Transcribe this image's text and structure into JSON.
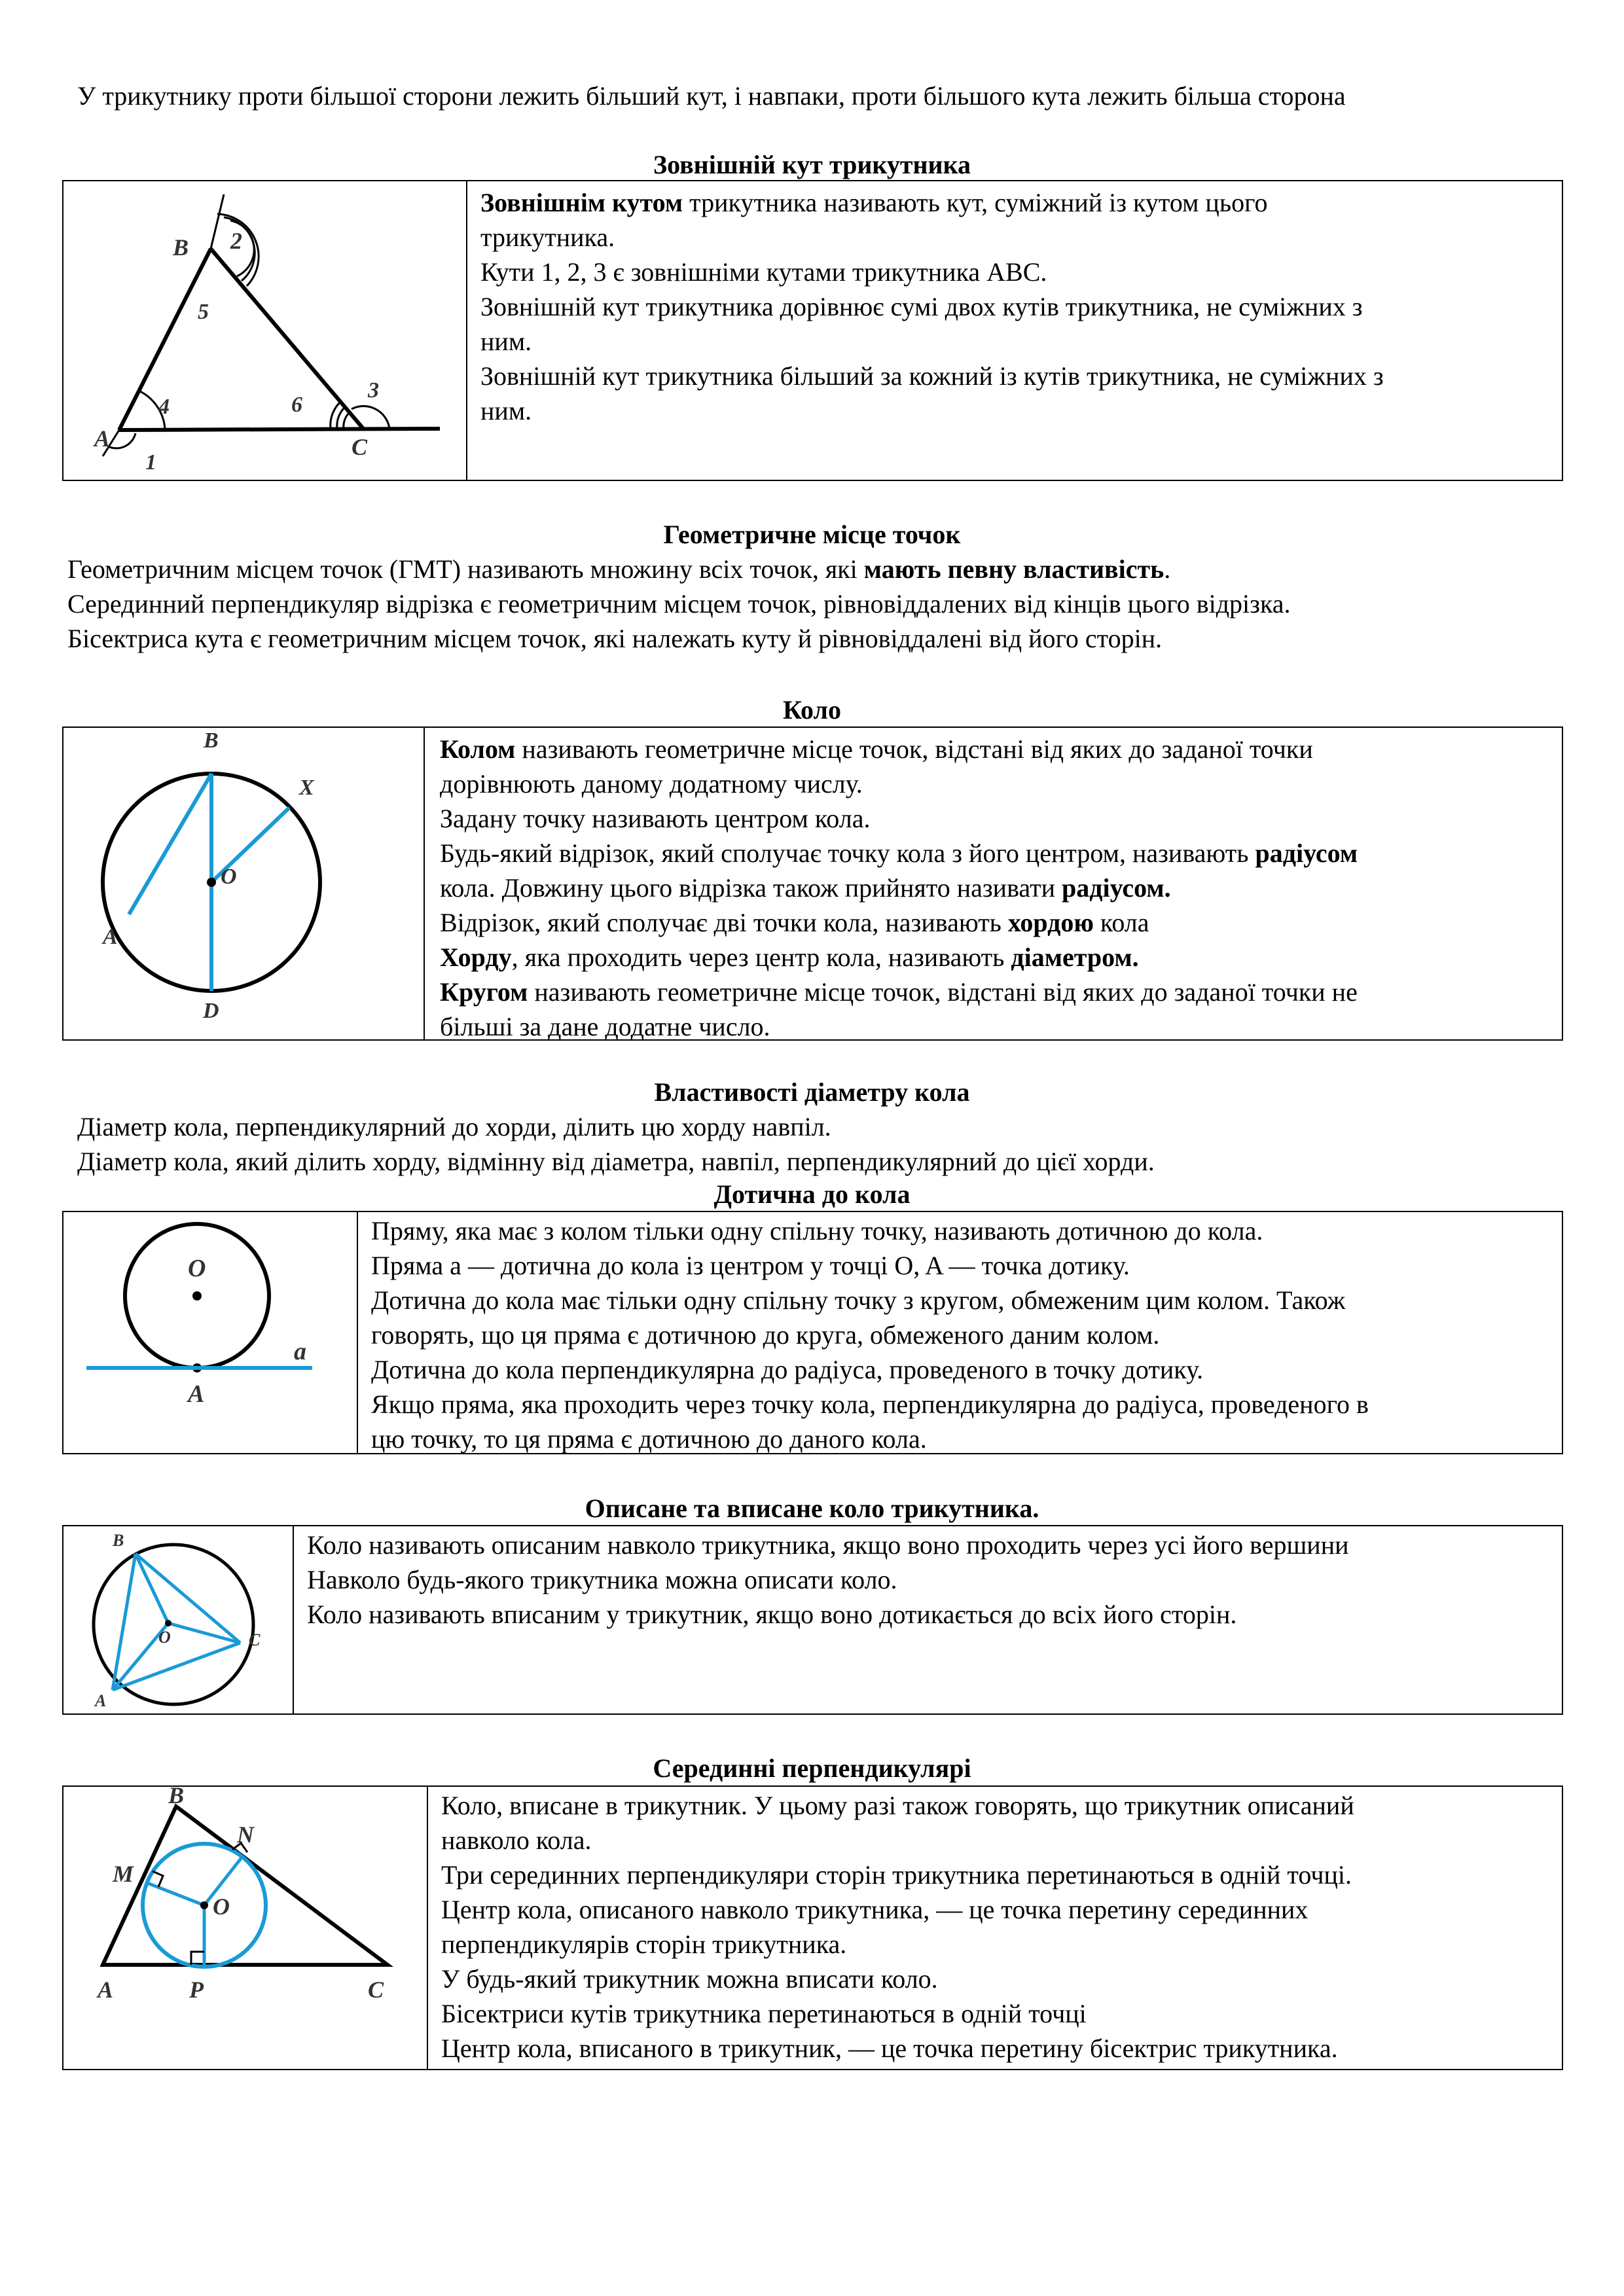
{
  "intro": "У трикутнику проти більшої сторони лежить більший кут, і навпаки, проти більшого кута лежить більша сторона",
  "exterior": {
    "title": "Зовнішній кут трикутника",
    "def_bold": "Зовнішнім кутом",
    "def_rest": " трикутника називають кут, суміжний із кутом цього",
    "def_cont": "трикутника.",
    "line2": "Кути 1, 2, 3 є зовнішніми кутами трикутника ABC.",
    "line3a": "Зовнішній кут трикутника дорівнює сумі двох кутів трикутника, не суміжних з",
    "line3b": "ним.",
    "line4a": "Зовнішній кут трикутника більший за кожний із кутів трикутника, не суміжних з",
    "line4b": "ним.",
    "fig": {
      "A": "A",
      "B": "B",
      "C": "C",
      "n1": "1",
      "n2": "2",
      "n3": "3",
      "n4": "4",
      "n5": "5",
      "n6": "6"
    }
  },
  "locus": {
    "title": "Геометричне місце точок",
    "l1a": "Геометричним місцем точок (ГМТ) називають множину всіх точок, які ",
    "l1b": "мають певну властивість",
    "l1c": ".",
    "l2": "Серединний перпендикуляр відрізка є геометричним місцем точок, рівновіддалених від кінців цього відрізка.",
    "l3": "Бісектриса кута є геометричним місцем точок, які належать куту й рівновіддалені від його сторін."
  },
  "circle": {
    "title": "Коло",
    "l1a": "Колом",
    "l1b": " називають геометричне місце точок, відстані від яких до заданої точки",
    "l2": "дорівнюють даному додатному числу.",
    "l3": "Задану точку називають центром кола.",
    "l4a": "Будь-який відрізок, який сполучає точку кола з його центром, називають ",
    "l4b": "радіусом",
    "l5a": "кола. Довжину цього відрізка також прийнято називати ",
    "l5b": "радіусом.",
    "l6a": "Відрізок, який сполучає дві точки кола, називають ",
    "l6b": "хордою",
    "l6c": " кола",
    "l7a": "Хорду",
    "l7b": ", яка проходить через центр кола, називають ",
    "l7c": "діаметром.",
    "l8a": "Кругом",
    "l8b": " називають геометричне місце точок, відстані від яких до заданої точки не",
    "l9": "більші за дане додатне число.",
    "fig": {
      "A": "A",
      "B": "B",
      "D": "D",
      "O": "O",
      "X": "X"
    }
  },
  "diameter": {
    "title": "Властивості діаметру кола",
    "l1": "Діаметр кола, перпендикулярний до хорди, ділить цю хорду навпіл.",
    "l2": "Діаметр кола, який ділить хорду, відмінну від діаметра, навпіл, перпендикулярний до цієї хорди."
  },
  "tangent": {
    "title": "Дотична до кола",
    "l1": "Пряму, яка має з колом тільки одну спільну точку, називають дотичною до кола.",
    "l2": "Пряма a — дотична до кола із центром у точці O, A — точка дотику.",
    "l3": "Дотична до кола має тільки одну спільну точку з кругом, обмеженим цим колом. Також",
    "l4": "говорять, що ця пряма є дотичною до круга, обмеженого даним колом.",
    "l5": "Дотична до кола перпендикулярна до радіуса, проведеного в точку дотику.",
    "l6": "Якщо пряма, яка проходить через точку кола, перпендикулярна до радіуса, проведеного в",
    "l7": "цю точку, то ця пряма є дотичною до даного кола.",
    "fig": {
      "O": "O",
      "A": "A",
      "a": "a"
    }
  },
  "circum": {
    "title": "Описане та вписане коло трикутника.",
    "l1": "Коло називають описаним навколо трикутника, якщо воно проходить через усі його вершини",
    "l2": "Навколо будь-якого трикутника можна описати коло.",
    "l3": "Коло називають вписаним у трикутник, якщо воно дотикається до всіх його сторін.",
    "fig": {
      "A": "A",
      "B": "B",
      "C": "C",
      "O": "O"
    }
  },
  "perp": {
    "title": "Серединні перпендикулярі",
    "l1": "Коло, вписане в трикутник. У цьому разі також говорять, що трикутник описаний",
    "l2": "навколо кола.",
    "l3": "Три серединних перпендикуляри сторін трикутника перетинаються в одній точці.",
    "l4": "Центр кола, описаного навколо трикутника, — це точка перетину серединних",
    "l5": "перпендикулярів сторін трикутника.",
    "l6": "У будь-який трикутник можна вписати коло.",
    "l7": "Бісектриси кутів трикутника перетинаються в одній точці",
    "l8": "Центр кола, вписаного в трикутник, — це точка перетину бісектрис трикутника.",
    "fig": {
      "A": "A",
      "B": "B",
      "C": "C",
      "M": "M",
      "N": "N",
      "O": "O",
      "P": "P"
    }
  },
  "colors": {
    "accent": "#1a9ad6",
    "ink": "#000000"
  }
}
